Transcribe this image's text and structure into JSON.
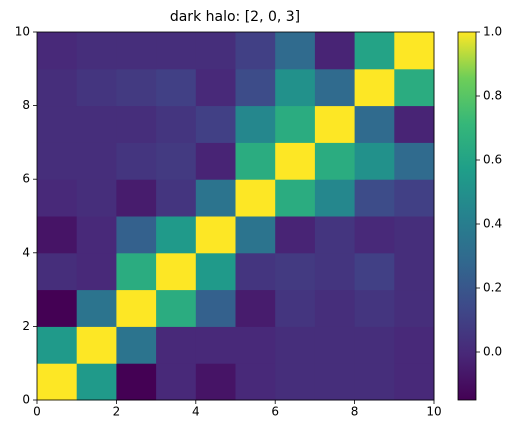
{
  "chart_data": {
    "type": "heatmap",
    "title": "dark halo: [2, 0, 3]",
    "colormap": "viridis",
    "z": [
      [
        1.0,
        0.55,
        -0.15,
        0.0,
        -0.08,
        0.0,
        0.02,
        0.02,
        0.02,
        0.0
      ],
      [
        0.55,
        1.0,
        0.35,
        0.0,
        0.0,
        0.0,
        0.02,
        0.02,
        0.02,
        0.0
      ],
      [
        -0.15,
        0.35,
        1.0,
        0.65,
        0.25,
        -0.05,
        0.05,
        0.02,
        0.05,
        0.02
      ],
      [
        0.02,
        0.0,
        0.65,
        1.0,
        0.55,
        0.05,
        0.07,
        0.05,
        0.1,
        0.02
      ],
      [
        -0.08,
        0.0,
        0.25,
        0.55,
        1.0,
        0.35,
        -0.02,
        0.05,
        0.0,
        0.02
      ],
      [
        0.0,
        0.02,
        -0.05,
        0.05,
        0.35,
        1.0,
        0.65,
        0.45,
        0.15,
        0.1
      ],
      [
        0.02,
        0.02,
        0.05,
        0.07,
        -0.02,
        0.65,
        1.0,
        0.65,
        0.5,
        0.3
      ],
      [
        0.02,
        0.02,
        0.02,
        0.05,
        0.1,
        0.45,
        0.65,
        1.0,
        0.3,
        -0.02
      ],
      [
        0.02,
        0.05,
        0.07,
        0.1,
        0.0,
        0.15,
        0.5,
        0.3,
        1.0,
        0.65
      ],
      [
        0.0,
        0.02,
        0.02,
        0.02,
        0.02,
        0.1,
        0.3,
        -0.02,
        0.6,
        1.0
      ]
    ],
    "xlim": [
      0,
      10
    ],
    "xticks": [
      0,
      2,
      4,
      6,
      8,
      10
    ],
    "ylim": [
      0,
      10
    ],
    "yticks": [
      0,
      2,
      4,
      6,
      8,
      10
    ],
    "clim": [
      -0.15,
      1.0
    ],
    "cticks": [
      {
        "value": 0,
        "label": "0.0"
      },
      {
        "value": 0.2,
        "label": "0.2"
      },
      {
        "value": 0.4,
        "label": "0.4"
      },
      {
        "value": 0.6,
        "label": "0.6"
      },
      {
        "value": 0.8,
        "label": "0.8"
      },
      {
        "value": 1,
        "label": "1.0"
      }
    ]
  }
}
